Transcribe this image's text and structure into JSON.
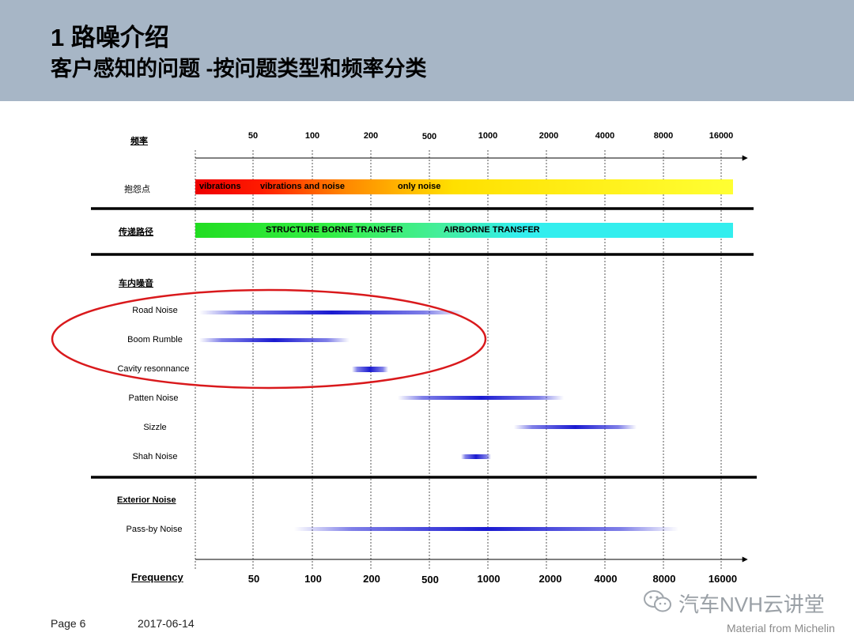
{
  "header": {
    "title": "1 路噪介绍",
    "subtitle": "客户感知的问题 -按问题类型和频率分类"
  },
  "axis": {
    "top_label": "频率",
    "bottom_label": "Frequency",
    "ticks": [
      "50",
      "100",
      "200",
      "500",
      "1000",
      "2000",
      "4000",
      "8000",
      "16000"
    ]
  },
  "perception": {
    "label": "抱怨点",
    "segments": [
      "vibrations",
      "vibrations and noise",
      "only noise"
    ]
  },
  "transfer": {
    "label": "传递路径",
    "segments": [
      "STRUCTURE BORNE TRANSFER",
      "AIRBORNE TRANSFER"
    ]
  },
  "interior": {
    "label": "车内噪音",
    "rows": [
      {
        "label": "Road Noise",
        "range": [
          "<50",
          "~700"
        ]
      },
      {
        "label": "Boom Rumble",
        "range": [
          "<50",
          "~170"
        ]
      },
      {
        "label": "Cavity resonnance",
        "range": [
          "~180",
          "~230"
        ]
      },
      {
        "label": "Patten Noise",
        "range": [
          "~300",
          "~2500"
        ]
      },
      {
        "label": "Sizzle",
        "range": [
          "~1500",
          "~6000"
        ]
      },
      {
        "label": "Shah Noise",
        "range": [
          "~800",
          "~1000"
        ]
      }
    ]
  },
  "exterior": {
    "label": "Exterior Noise",
    "rows": [
      {
        "label": "Pass-by Noise",
        "range": [
          "~90",
          "~10000"
        ]
      }
    ]
  },
  "footer": {
    "page": "Page 6",
    "date": "2017-06-14"
  },
  "watermark": {
    "icon": "wechat-icon",
    "text": "汽车NVH云讲堂"
  },
  "credit": "Material from Michelin",
  "colors": {
    "header_bg": "#a7b6c6",
    "noise_bar": "#2a2ad8",
    "highlight_ellipse": "#d9191c"
  }
}
